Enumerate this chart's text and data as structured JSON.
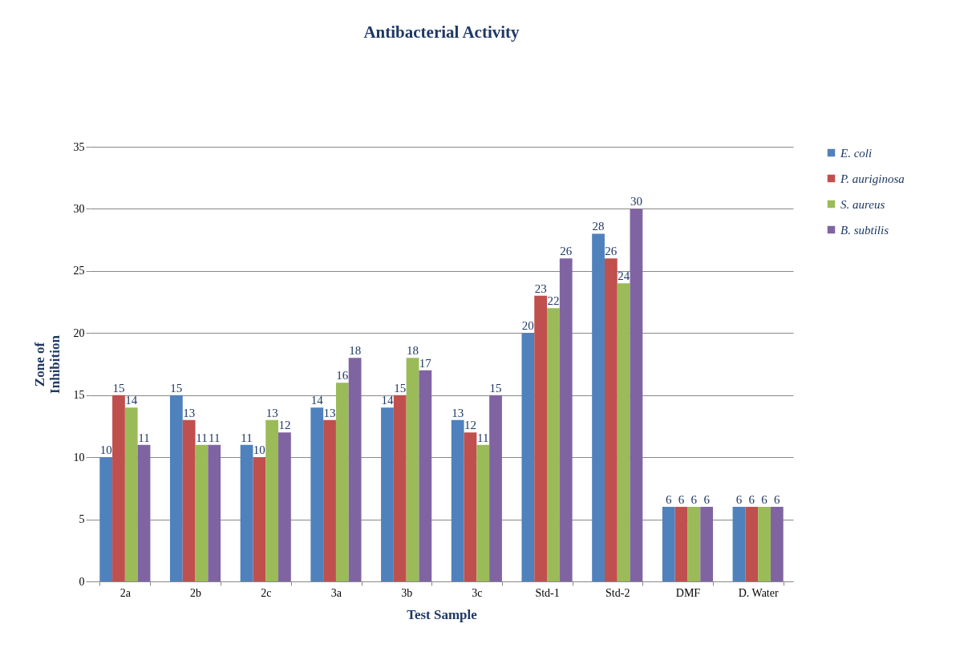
{
  "chart_data": {
    "type": "bar",
    "title": "Antibacterial Activity",
    "xlabel": "Test Sample",
    "ylabel": "Zone of Inhibition",
    "categories": [
      "2a",
      "2b",
      "2c",
      "3a",
      "3b",
      "3c",
      "Std-1",
      "Std-2",
      "DMF",
      "D. Water"
    ],
    "series": [
      {
        "name": "E. coli",
        "color": "#4f81bd",
        "values": [
          10,
          15,
          11,
          14,
          14,
          13,
          20,
          28,
          6,
          6
        ]
      },
      {
        "name": "P. auriginosa",
        "color": "#c0504d",
        "values": [
          15,
          13,
          10,
          13,
          15,
          12,
          23,
          26,
          6,
          6
        ]
      },
      {
        "name": "S. aureus",
        "color": "#9bbb59",
        "values": [
          14,
          11,
          13,
          16,
          18,
          11,
          22,
          24,
          6,
          6
        ]
      },
      {
        "name": "B. subtilis",
        "color": "#8064a2",
        "values": [
          11,
          11,
          12,
          18,
          17,
          15,
          26,
          30,
          6,
          6
        ]
      }
    ],
    "ylim": [
      0,
      35
    ],
    "yticks": [
      0,
      5,
      10,
      15,
      20,
      25,
      30,
      35
    ],
    "grid": "y",
    "legend": "right",
    "data_labels": true
  }
}
